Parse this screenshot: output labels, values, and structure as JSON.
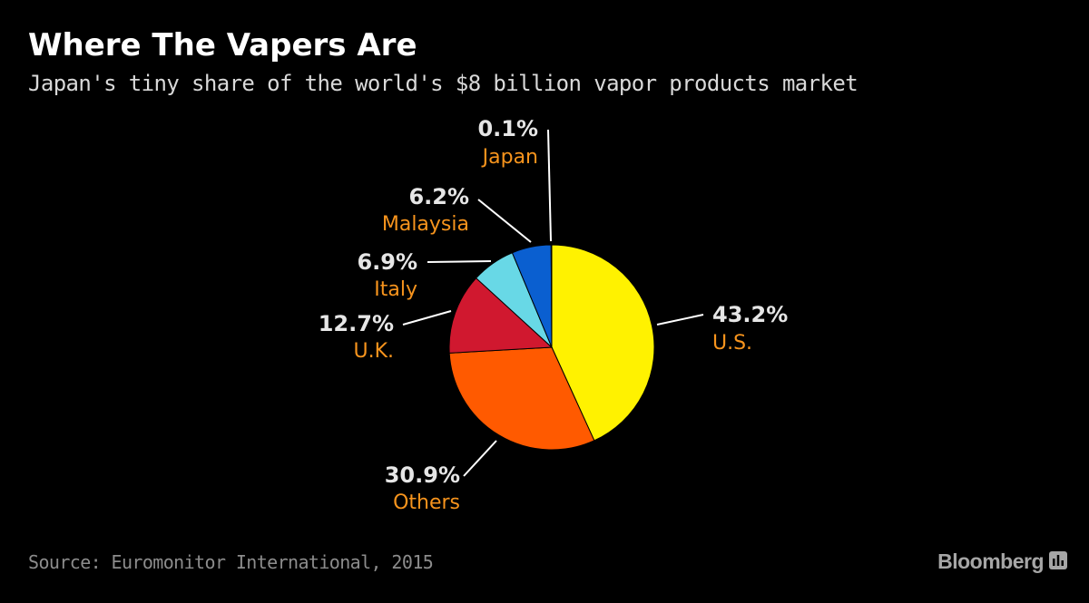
{
  "header": {
    "title": "Where The Vapers Are",
    "subtitle": "Japan's tiny share of the world's $8 billion vapor products market"
  },
  "footer": {
    "source": "Source: Euromonitor International, 2015",
    "brand": "Bloomberg",
    "brand_icon": "bloomberg-chart-icon"
  },
  "chart_data": {
    "type": "pie",
    "title": "Where The Vapers Are",
    "subtitle": "Japan's tiny share of the world's $8 billion vapor products market",
    "slices": [
      {
        "label": "U.S.",
        "value": 43.2,
        "value_label": "43.2%",
        "color": "#fff200"
      },
      {
        "label": "Others",
        "value": 30.9,
        "value_label": "30.9%",
        "color": "#ff5a00"
      },
      {
        "label": "U.K.",
        "value": 12.7,
        "value_label": "12.7%",
        "color": "#d0182f"
      },
      {
        "label": "Italy",
        "value": 6.9,
        "value_label": "6.9%",
        "color": "#68d8e6"
      },
      {
        "label": "Malaysia",
        "value": 6.2,
        "value_label": "6.2%",
        "color": "#0a5fd0"
      },
      {
        "label": "Japan",
        "value": 0.1,
        "value_label": "0.1%",
        "color": "#ffffff"
      }
    ],
    "start": "12 o'clock, clockwise",
    "label_color": "#f7941d",
    "value_color": "#e6e6e6",
    "leader_color": "#ffffff"
  }
}
